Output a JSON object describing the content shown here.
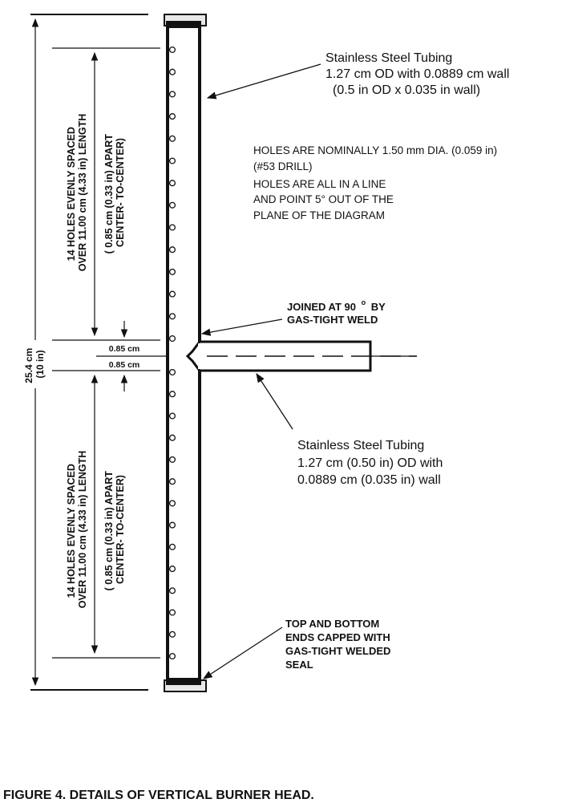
{
  "upper_tube_label": {
    "line1": "Stainless Steel Tubing",
    "line2": "1.27 cm OD with 0.0889 cm wall",
    "line3": "(0.5 in OD x 0.035 in wall)"
  },
  "holes_note": {
    "line1": "HOLES ARE NOMINALLY 1.50 mm DIA. (0.059 in)",
    "line2": "(#53 DRILL)",
    "line3": "HOLES ARE ALL IN A LINE",
    "line4": "AND POINT 5° OUT OF THE",
    "line5": "PLANE OF THE DIAGRAM"
  },
  "weld_label": {
    "line1_prefix": "JOINED AT 90",
    "degree": "o",
    "line1_suffix": "BY",
    "line2": "GAS-TIGHT WELD"
  },
  "side_tube_label": {
    "line1": "Stainless Steel Tubing",
    "line2": "1.27 cm (0.50 in) OD with",
    "line3": "0.0889 cm (0.035 in) wall"
  },
  "end_cap_label": {
    "line1": "TOP AND BOTTOM",
    "line2": "ENDS CAPPED WITH",
    "line3": "GAS-TIGHT WELDED",
    "line4": "SEAL"
  },
  "overall_dimension": {
    "line1": "25.4 cm",
    "line2": "(10 in)"
  },
  "upper_holes": {
    "line1": "14 HOLES EVENLY SPACED",
    "line2": "OVER 11.00 cm (4.33 in) LENGTH",
    "line3": "( 0.85 cm (0.33 in) APART",
    "line4": "CENTER- TO-CENTER)",
    "count": 14
  },
  "lower_holes": {
    "line1": "14 HOLES EVENLY SPACED",
    "line2": "OVER  11.00 cm (4.33 in) LENGTH",
    "line3": "( 0.85 cm (0.33 in) APART",
    "line4": "CENTER- TO-CENTER)",
    "count": 14
  },
  "gap_dimension_upper": "0.85 cm",
  "gap_dimension_lower": "0.85 cm",
  "caption": "FIGURE 4.     DETAILS OF VERTICAL BURNER HEAD."
}
